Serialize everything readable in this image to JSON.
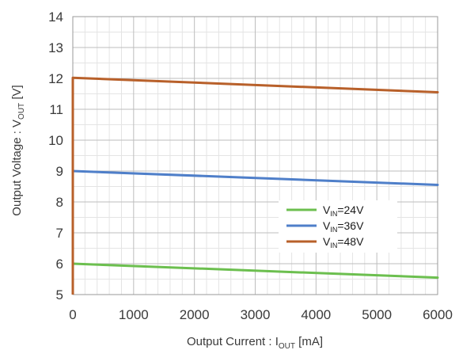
{
  "chart_data": {
    "type": "line",
    "title": "",
    "xlabel": {
      "main": "Output  Current : I",
      "sub": "OUT",
      "tail": " [mA]"
    },
    "ylabel": {
      "main": "Output  Voltage : V",
      "sub": "OUT",
      "tail": " [V]"
    },
    "xlim": [
      0,
      6000
    ],
    "ylim": [
      5,
      14
    ],
    "xticks": [
      0,
      1000,
      2000,
      3000,
      4000,
      5000,
      6000
    ],
    "yticks": [
      5,
      6,
      7,
      8,
      9,
      10,
      11,
      12,
      13,
      14
    ],
    "grid": {
      "major": true,
      "minor_x": 5,
      "minor_y": 2
    },
    "legend_position": "lower-right",
    "series": [
      {
        "legend": {
          "pre": "V",
          "sub": "IN",
          "post": "=24V"
        },
        "color": "#6cbf4f",
        "x": [
          0,
          6000
        ],
        "y": [
          6.0,
          5.55
        ]
      },
      {
        "legend": {
          "pre": "V",
          "sub": "IN",
          "post": "=36V"
        },
        "color": "#4f7fc9",
        "x": [
          0,
          6000
        ],
        "y": [
          9.0,
          8.55
        ]
      },
      {
        "legend": {
          "pre": "V",
          "sub": "IN",
          "post": "=48V"
        },
        "color": "#b8602a",
        "x": [
          0,
          6000
        ],
        "y": [
          12.02,
          11.55
        ]
      }
    ],
    "startup_edge": {
      "color": "#b8602a",
      "x": 0,
      "y": [
        5,
        12.02
      ]
    }
  }
}
